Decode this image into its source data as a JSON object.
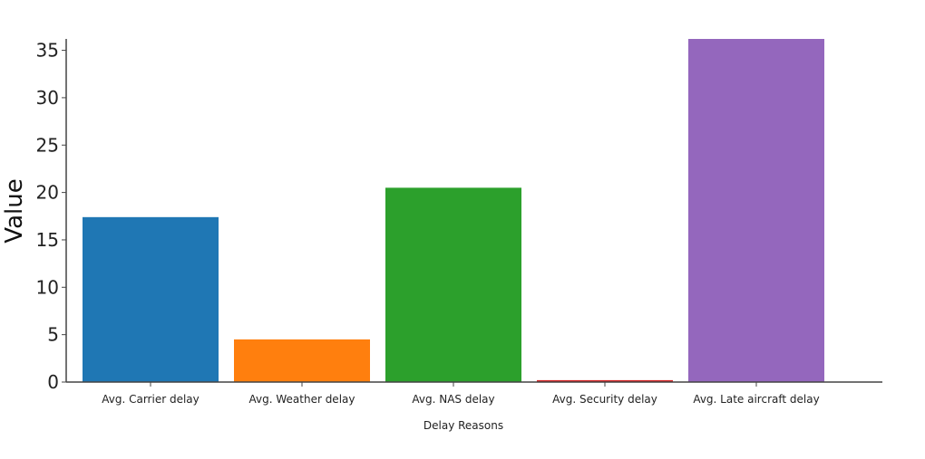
{
  "chart_data": {
    "type": "bar",
    "categories": [
      "Avg. Carrier delay",
      "Avg. Weather delay",
      "Avg. NAS delay",
      "Avg. Security delay",
      "Avg. Late aircraft delay"
    ],
    "values": [
      17.4,
      4.5,
      20.5,
      0.2,
      36.2
    ],
    "colors": [
      "#1f77b4",
      "#ff7f0e",
      "#2ca02c",
      "#d62728",
      "#9467bd"
    ],
    "xlabel": "Delay Reasons",
    "ylabel": "Value",
    "ylim": [
      0,
      36.2
    ],
    "yticks": [
      "0",
      "5",
      "10",
      "15",
      "20",
      "25",
      "30",
      "35"
    ],
    "grid": false
  }
}
